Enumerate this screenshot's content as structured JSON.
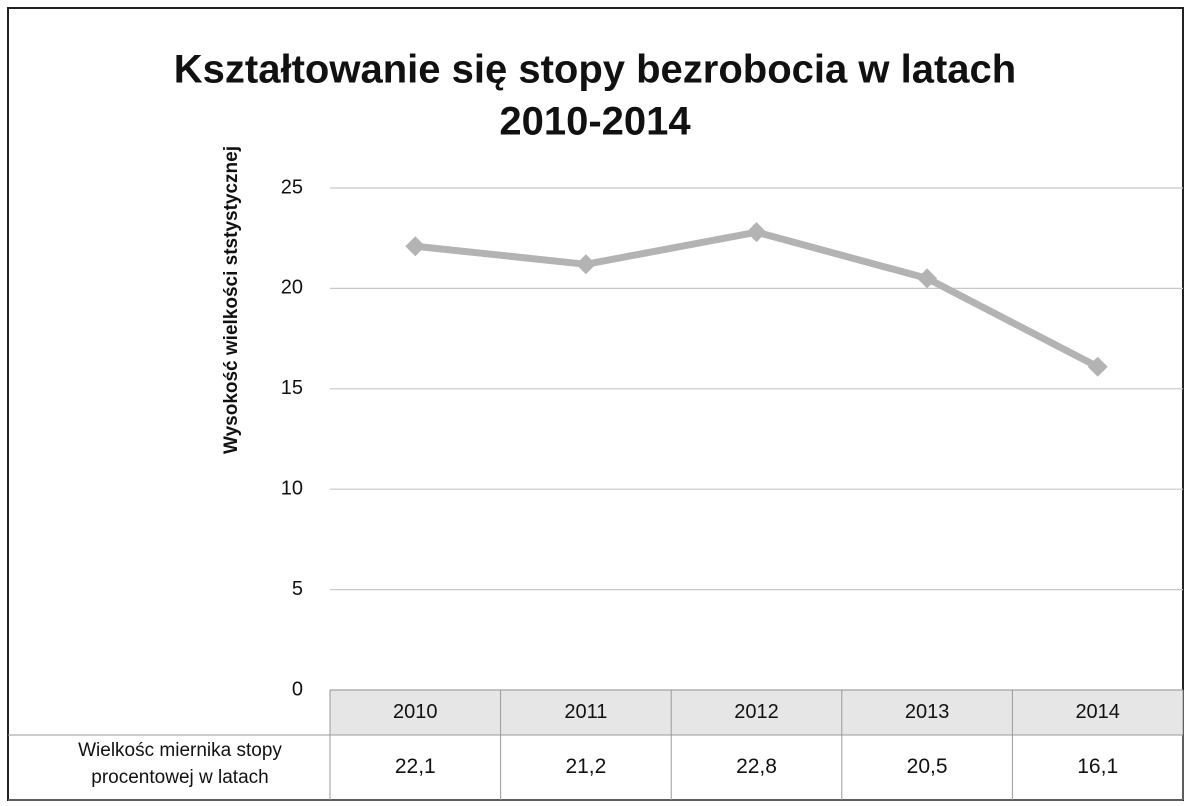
{
  "chart_data": {
    "type": "line",
    "title": [
      "Kształtowanie się stopy bezrobocia  w latach",
      "2010-2014"
    ],
    "y_label": "Wysokość  wielkości ststystycznej",
    "categories": [
      "2010",
      "2011",
      "2012",
      "2013",
      "2014"
    ],
    "series": [
      {
        "name": "Wielkośc miernika stopy procentowej w latach",
        "color": "#b3b3b3",
        "values": [
          22.1,
          21.2,
          22.8,
          20.5,
          16.1
        ],
        "value_labels": [
          "22,1",
          "21,2",
          "22,8",
          "20,5",
          "16,1"
        ]
      }
    ],
    "ylim": [
      0,
      25
    ],
    "yticks": [
      0,
      5,
      10,
      15,
      20,
      25
    ],
    "grid": true
  }
}
